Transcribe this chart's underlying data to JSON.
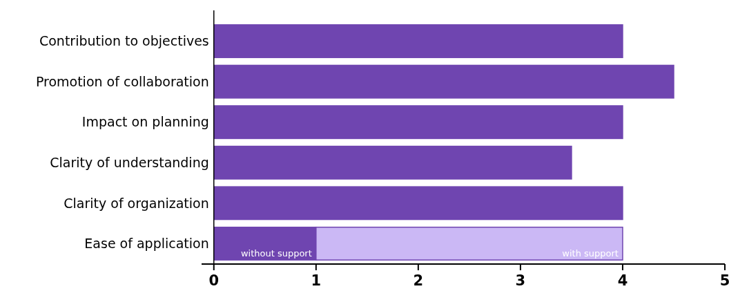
{
  "chart_data": {
    "type": "bar",
    "orientation": "horizontal",
    "stacked": true,
    "categories": [
      "Contribution to objectives",
      "Promotion of collaboration",
      "Impact on planning",
      "Clarity of understanding",
      "Clarity of organization",
      "Ease of application"
    ],
    "series": [
      {
        "name": "without support",
        "color": "#6f45b0",
        "values": [
          4,
          4.5,
          4,
          3.5,
          4,
          1
        ]
      },
      {
        "name": "with support",
        "color": "#cbb8f5",
        "values": [
          null,
          null,
          null,
          null,
          null,
          3
        ]
      }
    ],
    "xlim": [
      -0.12,
      5
    ],
    "xticks": [
      0,
      1,
      2,
      3,
      4,
      5
    ]
  }
}
